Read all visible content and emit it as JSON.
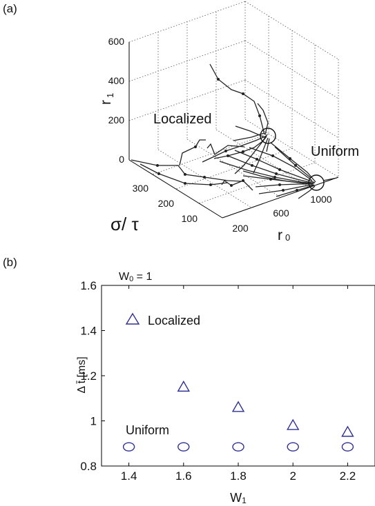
{
  "panel_a": {
    "label": "(a)",
    "z_axis_label": "r",
    "z_axis_sub": "1",
    "z_ticks": [
      "600",
      "400",
      "200",
      "0"
    ],
    "y_axis_label": "σ/ τ",
    "y_ticks": [
      "300",
      "200",
      "100"
    ],
    "x_axis_label": "r",
    "x_axis_sub": "0",
    "x_ticks": [
      "200",
      "600",
      "1000"
    ],
    "annotations": [
      "Localized",
      "Uniform"
    ]
  },
  "panel_b": {
    "label": "(b)",
    "header_w": "W",
    "header_sub": "0",
    "header_eq": " = 1"
  },
  "chart_data": [
    {
      "type": "scatter",
      "title": "W0 = 1",
      "xlabel": "W",
      "xlabel_sub": "1",
      "ylabel": "Δ t̄ [ms]",
      "xlim": [
        1.3,
        2.3
      ],
      "ylim": [
        0.8,
        1.6
      ],
      "xticks": [
        "1.4",
        "1.6",
        "1.8",
        "2",
        "2.2"
      ],
      "yticks": [
        "0.8",
        "1",
        "1.2",
        "1.4",
        "1.6"
      ],
      "series": [
        {
          "name": "Localized",
          "marker": "triangle",
          "color": "#2e3192",
          "x": [
            1.6,
            1.8,
            2.0,
            2.2
          ],
          "y": [
            1.15,
            1.06,
            0.98,
            0.95
          ]
        },
        {
          "name": "Uniform",
          "marker": "circle",
          "color": "#2e3192",
          "x": [
            1.4,
            1.6,
            1.8,
            2.0,
            2.2
          ],
          "y": [
            0.885,
            0.885,
            0.885,
            0.885,
            0.885
          ]
        }
      ],
      "legend_entry": "Localized",
      "annotation": "Uniform"
    }
  ]
}
